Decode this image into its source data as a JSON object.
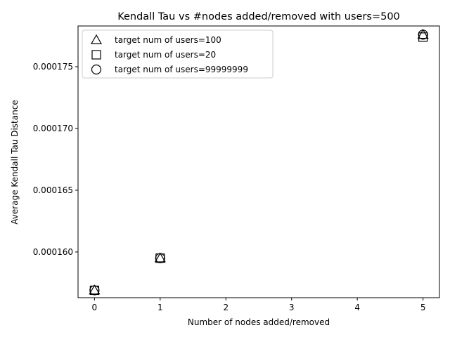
{
  "chart_data": {
    "type": "scatter",
    "title": "Kendall Tau vs #nodes added/removed with users=500",
    "xlabel": "Number of nodes added/removed",
    "ylabel": "Average Kendall Tau Distance",
    "xlim": [
      -0.25,
      5.25
    ],
    "ylim": [
      0.0001563,
      0.0001783
    ],
    "xticks": [
      0,
      1,
      2,
      3,
      4,
      5
    ],
    "xtick_labels": [
      "0",
      "1",
      "2",
      "3",
      "4",
      "5"
    ],
    "yticks": [
      0.00016,
      0.000165,
      0.00017,
      0.000175
    ],
    "ytick_labels": [
      "0.000160",
      "0.000165",
      "0.000170",
      "0.000175"
    ],
    "grid": false,
    "legend_position": "top-left",
    "series": [
      {
        "name": "target num of users=100",
        "marker": "triangle",
        "x": [
          0,
          1,
          5
        ],
        "y": [
          0.0001569,
          0.0001595,
          0.0001776
        ]
      },
      {
        "name": "target num of users=20",
        "marker": "square",
        "x": [
          0,
          1,
          5
        ],
        "y": [
          0.0001569,
          0.0001595,
          0.0001774
        ]
      },
      {
        "name": "target num of users=99999999",
        "marker": "circle",
        "x": [
          0,
          1,
          5
        ],
        "y": [
          0.0001569,
          0.0001595,
          0.0001776
        ]
      }
    ],
    "colors": {
      "marker_edge": "#000000",
      "marker_face": "none"
    }
  }
}
